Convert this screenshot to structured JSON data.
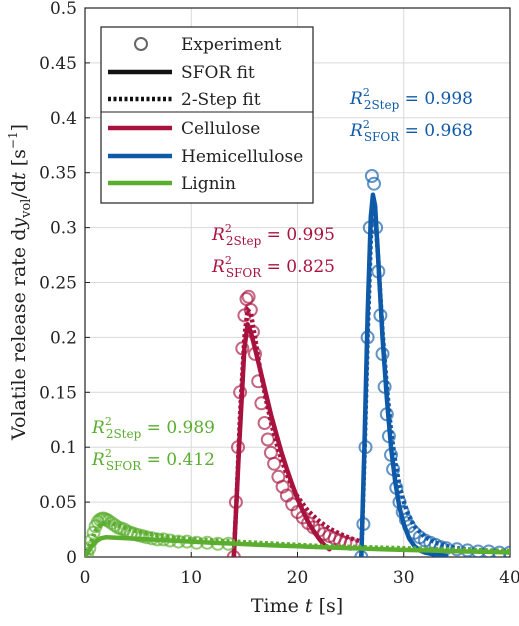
{
  "chart_data": {
    "type": "line",
    "xlabel": "Time t [s]",
    "ylabel": "Volatile release rate dy_vol/dt [s^-1]",
    "xlim": [
      0,
      40
    ],
    "ylim": [
      0,
      0.5
    ],
    "xticks": [
      0,
      10,
      20,
      30,
      40
    ],
    "yticks": [
      0,
      0.05,
      0.1,
      0.15,
      0.2,
      0.25,
      0.3,
      0.35,
      0.4,
      0.45,
      0.5
    ],
    "grid": true,
    "legend_position": "top-left",
    "legend": {
      "entries": [
        {
          "label": "Experiment",
          "kind": "marker"
        },
        {
          "label": "SFOR fit",
          "kind": "solid"
        },
        {
          "label": "2-Step fit",
          "kind": "dotted"
        },
        {
          "label": "Cellulose",
          "kind": "color",
          "color": "#a8123e"
        },
        {
          "label": "Hemicellulose",
          "kind": "color",
          "color": "#0f5aa8"
        },
        {
          "label": "Lignin",
          "kind": "color",
          "color": "#5aad2e"
        }
      ]
    },
    "series": [
      {
        "name": "Cellulose",
        "color": "#a8123e",
        "experiment": {
          "x": [
            14.0,
            14.2,
            14.4,
            14.6,
            14.8,
            15.0,
            15.2,
            15.4,
            15.6,
            15.8,
            16.0,
            16.3,
            16.6,
            16.9,
            17.2,
            17.5,
            17.8,
            18.2,
            18.6,
            19.0,
            19.5,
            20.0,
            20.5,
            21.0,
            21.5,
            22.0,
            22.5,
            23.0,
            23.5,
            24.0,
            24.5,
            25.0
          ],
          "y": [
            0.0,
            0.05,
            0.1,
            0.15,
            0.19,
            0.22,
            0.235,
            0.237,
            0.225,
            0.205,
            0.185,
            0.16,
            0.14,
            0.122,
            0.107,
            0.095,
            0.085,
            0.073,
            0.064,
            0.056,
            0.048,
            0.041,
            0.036,
            0.031,
            0.027,
            0.024,
            0.021,
            0.019,
            0.017,
            0.015,
            0.013,
            0.012
          ]
        },
        "sfor_fit": {
          "x": [
            14.0,
            14.5,
            15.0,
            15.3,
            15.6,
            16.0,
            16.5,
            17.0,
            17.5,
            18.0,
            18.5,
            19.0,
            19.5,
            20.0,
            20.5,
            21.0,
            21.5,
            22.0,
            22.5,
            23.0
          ],
          "y": [
            0.0,
            0.1,
            0.19,
            0.212,
            0.205,
            0.19,
            0.17,
            0.15,
            0.13,
            0.112,
            0.095,
            0.08,
            0.066,
            0.053,
            0.042,
            0.032,
            0.024,
            0.017,
            0.011,
            0.007
          ]
        },
        "two_step_fit": {
          "x": [
            14.0,
            14.3,
            14.6,
            15.0,
            15.3,
            15.6,
            16.0,
            16.5,
            17.0,
            17.5,
            18.0,
            18.5,
            19.0,
            19.5,
            20.0,
            21.0,
            22.0,
            23.0,
            24.0,
            25.0,
            26.0
          ],
          "y": [
            0.0,
            0.06,
            0.13,
            0.2,
            0.225,
            0.222,
            0.2,
            0.17,
            0.145,
            0.123,
            0.104,
            0.088,
            0.075,
            0.064,
            0.055,
            0.042,
            0.033,
            0.026,
            0.021,
            0.017,
            0.014
          ]
        },
        "r2_2step": "0.995",
        "r2_sfor": "0.825"
      },
      {
        "name": "Hemicellulose",
        "color": "#0f5aa8",
        "experiment": {
          "x": [
            26.0,
            26.2,
            26.4,
            26.6,
            26.8,
            27.0,
            27.2,
            27.4,
            27.6,
            27.8,
            28.0,
            28.2,
            28.4,
            28.6,
            28.8,
            29.0,
            29.3,
            29.6,
            29.9,
            30.2,
            30.5,
            31.0,
            31.5,
            32.0,
            32.5,
            33.0,
            33.5,
            34.0,
            35.0,
            36.0,
            37.0,
            38.0,
            39.0,
            40.0
          ],
          "y": [
            0.0,
            0.03,
            0.1,
            0.2,
            0.3,
            0.347,
            0.34,
            0.3,
            0.26,
            0.22,
            0.185,
            0.155,
            0.13,
            0.11,
            0.093,
            0.08,
            0.063,
            0.05,
            0.041,
            0.034,
            0.028,
            0.022,
            0.018,
            0.015,
            0.013,
            0.011,
            0.009,
            0.008,
            0.007,
            0.006,
            0.005,
            0.005,
            0.004,
            0.004
          ]
        },
        "sfor_fit": {
          "x": [
            26.0,
            26.3,
            26.6,
            26.9,
            27.1,
            27.3,
            27.6,
            28.0,
            28.4,
            28.8,
            29.2,
            29.6,
            30.0,
            30.5,
            31.0,
            31.5,
            32.0,
            33.0,
            34.0
          ],
          "y": [
            0.0,
            0.1,
            0.22,
            0.31,
            0.33,
            0.32,
            0.27,
            0.2,
            0.145,
            0.1,
            0.068,
            0.045,
            0.03,
            0.017,
            0.01,
            0.006,
            0.004,
            0.002,
            0.001
          ]
        },
        "two_step_fit": {
          "x": [
            26.0,
            26.3,
            26.6,
            26.9,
            27.1,
            27.3,
            27.6,
            28.0,
            28.4,
            28.8,
            29.2,
            29.6,
            30.0,
            30.5,
            31.0,
            32.0,
            33.0,
            34.0,
            35.0,
            36.0,
            37.0,
            38.0,
            39.0,
            40.0
          ],
          "y": [
            0.0,
            0.09,
            0.2,
            0.29,
            0.325,
            0.315,
            0.27,
            0.205,
            0.155,
            0.115,
            0.086,
            0.065,
            0.05,
            0.037,
            0.028,
            0.018,
            0.013,
            0.01,
            0.008,
            0.007,
            0.006,
            0.005,
            0.005,
            0.004
          ]
        },
        "r2_2step": "0.998",
        "r2_sfor": "0.968"
      },
      {
        "name": "Lignin",
        "color": "#5aad2e",
        "experiment": {
          "x": [
            0.0,
            0.2,
            0.4,
            0.6,
            0.8,
            1.0,
            1.2,
            1.4,
            1.6,
            1.8,
            2.0,
            2.2,
            2.5,
            2.8,
            3.1,
            3.4,
            3.7,
            4.0,
            4.3,
            4.6,
            5.0,
            5.4,
            5.8,
            6.3,
            6.8,
            7.4,
            8.0,
            8.8,
            9.6,
            10.5,
            11.5,
            12.5,
            13.5
          ],
          "y": [
            0.0,
            0.003,
            0.008,
            0.015,
            0.022,
            0.028,
            0.032,
            0.034,
            0.035,
            0.035,
            0.034,
            0.033,
            0.031,
            0.029,
            0.027,
            0.026,
            0.025,
            0.023,
            0.022,
            0.021,
            0.02,
            0.019,
            0.018,
            0.017,
            0.016,
            0.016,
            0.015,
            0.014,
            0.014,
            0.013,
            0.013,
            0.012,
            0.012
          ]
        },
        "sfor_fit": {
          "x": [
            0,
            0.5,
            1,
            1.5,
            2,
            3,
            4,
            5,
            6,
            8,
            10,
            12,
            14,
            16,
            18,
            20,
            22,
            24,
            26,
            28,
            30,
            32,
            34,
            36,
            38,
            40
          ],
          "y": [
            0,
            0.008,
            0.014,
            0.017,
            0.018,
            0.0175,
            0.017,
            0.0165,
            0.016,
            0.015,
            0.014,
            0.013,
            0.0122,
            0.0113,
            0.0105,
            0.0097,
            0.009,
            0.0083,
            0.0077,
            0.007,
            0.0065,
            0.006,
            0.0055,
            0.005,
            0.0046,
            0.0042
          ]
        },
        "two_step_fit": {
          "x": [
            0,
            0.5,
            1,
            1.5,
            2,
            2.5,
            3,
            4,
            5,
            6,
            8,
            10,
            12,
            14,
            16,
            18,
            20,
            22,
            24,
            26,
            28,
            30,
            32,
            34,
            36,
            38,
            40
          ],
          "y": [
            0,
            0.012,
            0.024,
            0.03,
            0.032,
            0.031,
            0.029,
            0.026,
            0.023,
            0.021,
            0.018,
            0.016,
            0.015,
            0.014,
            0.013,
            0.012,
            0.011,
            0.01,
            0.0095,
            0.009,
            0.0085,
            0.008,
            0.0075,
            0.007,
            0.0065,
            0.006,
            0.0055
          ]
        },
        "r2_2step": "0.989",
        "r2_sfor": "0.412"
      }
    ]
  }
}
